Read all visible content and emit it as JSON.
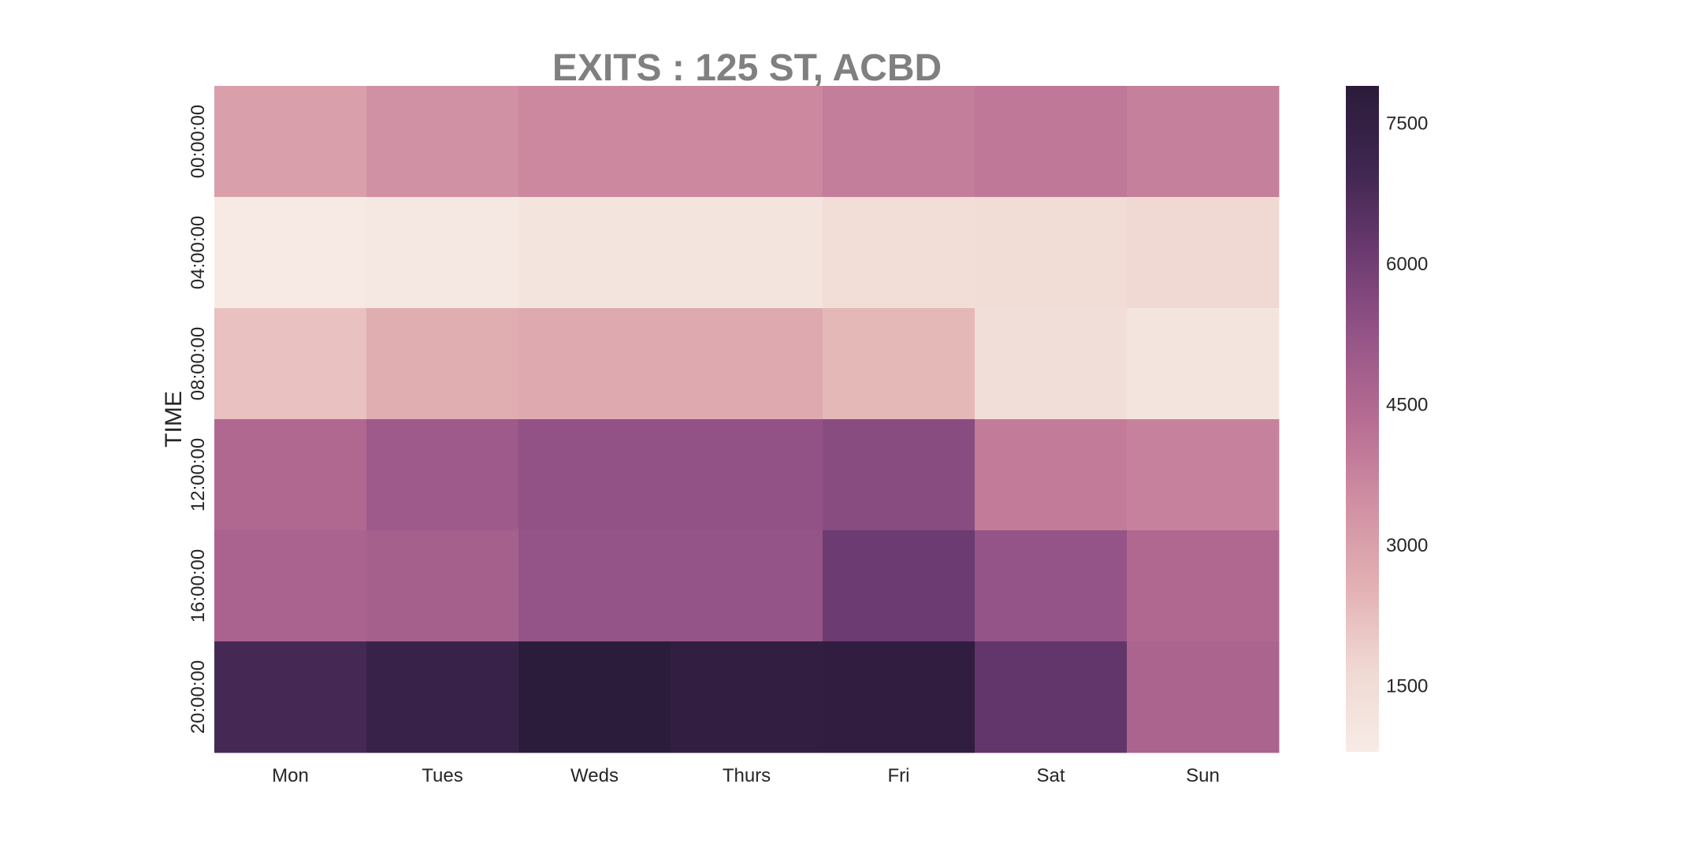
{
  "chart_data": {
    "type": "heatmap",
    "title": "EXITS : 125 ST, ACBD",
    "xlabel": "",
    "ylabel": "TIME",
    "x_categories": [
      "Mon",
      "Tues",
      "Weds",
      "Thurs",
      "Fri",
      "Sat",
      "Sun"
    ],
    "y_categories": [
      "00:00:00",
      "04:00:00",
      "08:00:00",
      "12:00:00",
      "16:00:00",
      "20:00:00"
    ],
    "values": [
      [
        3000,
        3400,
        3650,
        3650,
        3900,
        4050,
        3850
      ],
      [
        850,
        1000,
        1150,
        1150,
        1450,
        1500,
        1650
      ],
      [
        2200,
        2650,
        2750,
        2750,
        2400,
        1400,
        1150
      ],
      [
        4500,
        5000,
        5300,
        5300,
        5500,
        3950,
        3800
      ],
      [
        4700,
        4800,
        5250,
        5250,
        6100,
        5250,
        4500
      ],
      [
        6900,
        7300,
        7850,
        7650,
        7700,
        6300,
        4650
      ]
    ],
    "colorbar": {
      "range": [
        800,
        7900
      ],
      "ticks": [
        1500,
        3000,
        4500,
        6000,
        7500
      ]
    },
    "colormap_stops": [
      "#f7ebe6",
      "#f0d8d2",
      "#e2b0b2",
      "#d08fa3",
      "#b66c92",
      "#955487",
      "#6b3a70",
      "#3f2650",
      "#2b1b3a"
    ]
  }
}
